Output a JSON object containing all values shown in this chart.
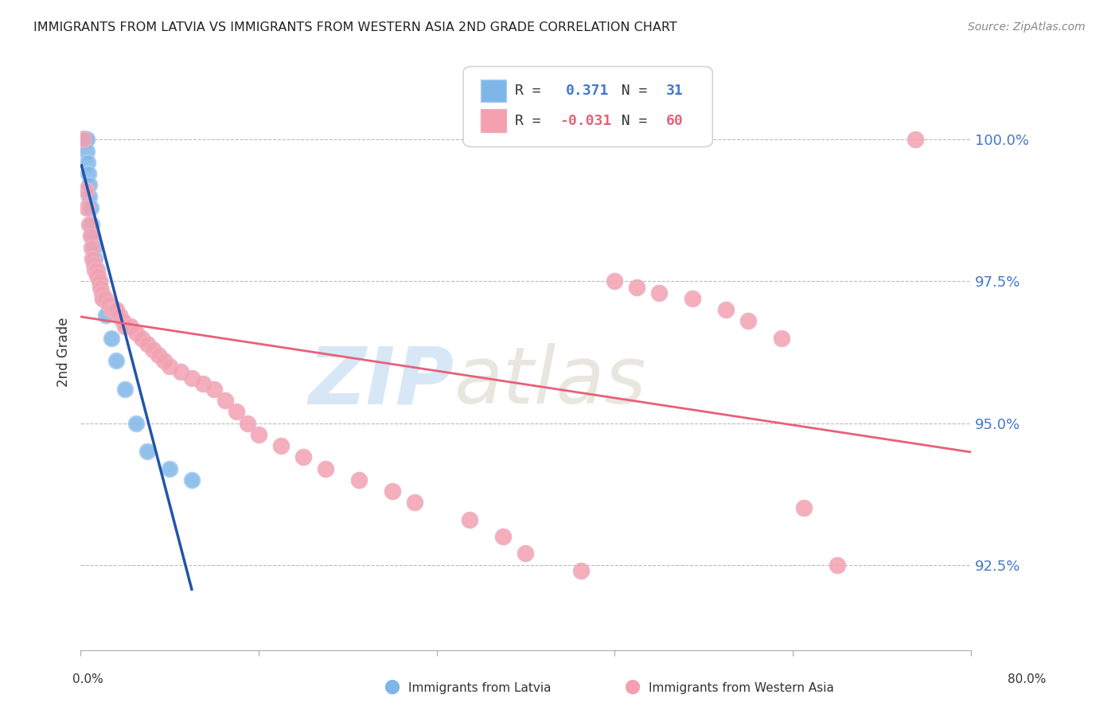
{
  "title": "IMMIGRANTS FROM LATVIA VS IMMIGRANTS FROM WESTERN ASIA 2ND GRADE CORRELATION CHART",
  "source": "Source: ZipAtlas.com",
  "ylabel": "2nd Grade",
  "ylim": [
    91.0,
    101.5
  ],
  "xlim": [
    0.0,
    80.0
  ],
  "legend_blue_r": "0.371",
  "legend_blue_n": "31",
  "legend_pink_r": "-0.031",
  "legend_pink_n": "60",
  "blue_color": "#7EB6E8",
  "pink_color": "#F4A0B0",
  "blue_line_color": "#2255AA",
  "pink_line_color": "#E8607A",
  "watermark_zip": "ZIP",
  "watermark_atlas": "atlas",
  "background_color": "#FFFFFF"
}
